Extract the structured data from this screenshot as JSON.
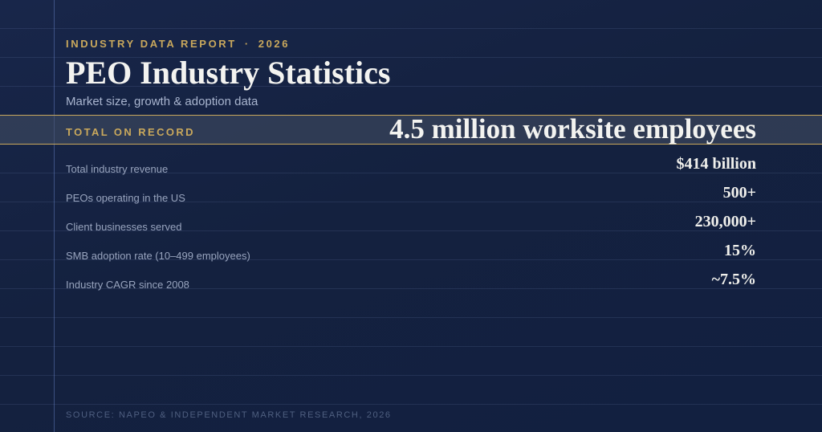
{
  "header": {
    "eyebrow_left": "INDUSTRY DATA REPORT",
    "eyebrow_separator": "·",
    "eyebrow_year": "2026",
    "title": "PEO Industry Statistics",
    "subtitle": "Market size, growth & adoption data"
  },
  "highlight": {
    "label": "TOTAL ON RECORD",
    "value": "4.5 million worksite employees"
  },
  "stats": [
    {
      "label": "Total industry revenue",
      "value": "$414 billion"
    },
    {
      "label": "PEOs operating in the US",
      "value": "500+"
    },
    {
      "label": "Client businesses served",
      "value": "230,000+"
    },
    {
      "label": "SMB adoption rate (10–499 employees)",
      "value": "15%"
    },
    {
      "label": "Industry CAGR since 2008",
      "value": "~7.5%"
    }
  ],
  "footer": {
    "source": "SOURCE: NAPEO & INDEPENDENT MARKET RESEARCH, 2026"
  },
  "colors": {
    "accent": "#c9a85c",
    "background": "#14213f",
    "text": "#f3f3f0"
  }
}
